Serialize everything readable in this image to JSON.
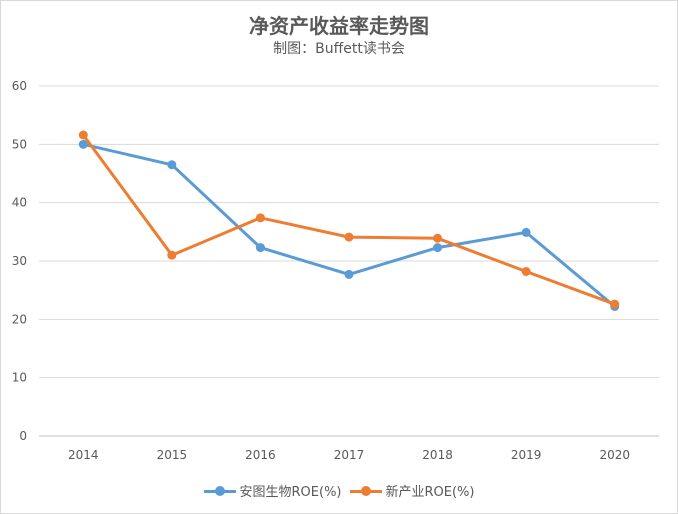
{
  "chart_data": {
    "type": "line",
    "title": "净资产收益率走势图",
    "subtitle": "制图：Buffett读书会",
    "categories": [
      "2014",
      "2015",
      "2016",
      "2017",
      "2018",
      "2019",
      "2020"
    ],
    "ylim": [
      0,
      60
    ],
    "yticks": [
      "0",
      "10",
      "20",
      "30",
      "40",
      "50",
      "60"
    ],
    "grid": true,
    "legend_position": "bottom",
    "series": [
      {
        "name": "安图生物ROE(%)",
        "color": "#5b9bd5",
        "values": [
          50.0,
          46.5,
          32.3,
          27.7,
          32.3,
          34.9,
          22.2
        ]
      },
      {
        "name": "新产业ROE(%)",
        "color": "#ed7d31",
        "values": [
          51.6,
          31.0,
          37.4,
          34.1,
          33.9,
          28.2,
          22.6
        ]
      }
    ]
  }
}
